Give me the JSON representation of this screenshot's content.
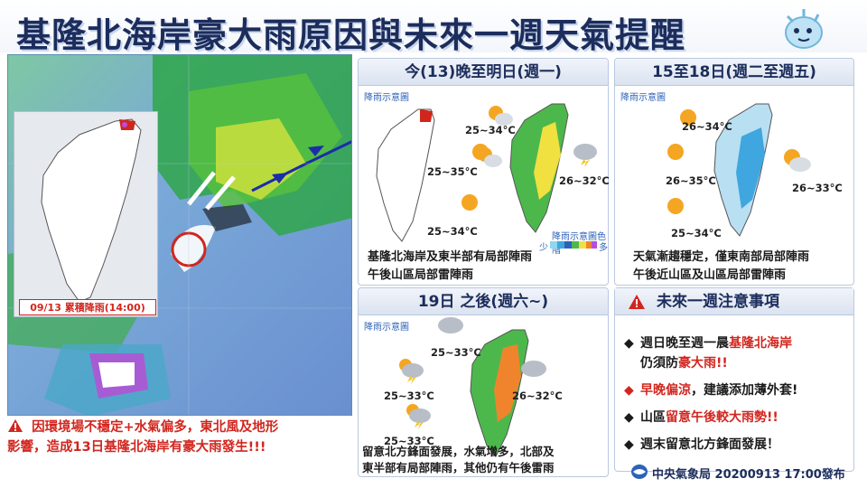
{
  "header": {
    "title": "基隆北海岸豪大雨原因與未來一週天氣提醒"
  },
  "satellite": {
    "inset_label": "09/13 累積降雨(14:00)",
    "note_line1": "因環境場不穩定+水氣偏多，東北風及地形",
    "note_line2": "影響，造成13日基隆北海岸有豪大雨發生!!!"
  },
  "panels": {
    "p1": {
      "title": "今(13)晚至明日(週一)",
      "sub": "降雨示意圖",
      "temps": [
        "25~34°C",
        "25~35°C",
        "25~34°C",
        "26~32°C"
      ],
      "legend_title": "降雨示意圖色階",
      "legend_low": "少",
      "legend_high": "多",
      "desc1": "基隆北海岸及東半部有局部陣雨",
      "desc2": "午後山區局部雷陣雨"
    },
    "p2": {
      "title": "15至18日(週二至週五)",
      "sub": "降雨示意圖",
      "temps": [
        "26~34°C",
        "26~35°C",
        "25~34°C",
        "26~33°C"
      ],
      "desc1": "天氣漸趨穩定，僅東南部局部陣雨",
      "desc2": "午後近山區及山區局部雷陣雨"
    },
    "p3": {
      "title": "19日 之後(週六~)",
      "sub": "降雨示意圖",
      "temps": [
        "25~33°C",
        "25~33°C",
        "25~33°C",
        "26~32°C"
      ],
      "desc1": "留意北方鋒面發展，水氣增多，北部及",
      "desc2": "東半部有局部陣雨，其他仍有午後雷雨"
    }
  },
  "notice": {
    "title": "未來一週注意事項",
    "item1_a": "週日晚至週一晨",
    "item1_b": "基隆北海岸",
    "item1_c": "仍須防",
    "item1_d": "豪大雨!!",
    "item2_a": "早晚偏涼",
    "item2_b": "，建議添加薄外套!",
    "item3_a": "山區",
    "item3_b": "留意午後較大雨勢!!",
    "item4": "週末留意北方鋒面發展！",
    "bullet_black": "◆",
    "bullet_red": "◆"
  },
  "footer": {
    "agency": "中央氣象局 20200913 17:00發布"
  },
  "colors": {
    "title": "#1c2d5c",
    "alert": "#d1261e",
    "accent": "#2d62b8"
  },
  "icons": [
    "warning-icon",
    "sun-icon",
    "partly-cloudy-icon",
    "thunderstorm-icon",
    "cloud-rain-icon",
    "raindrop-mascot-icon"
  ]
}
